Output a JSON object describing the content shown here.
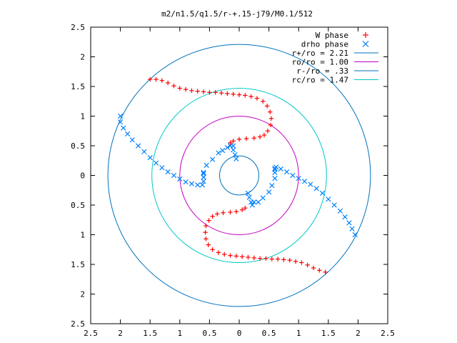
{
  "chart_data": {
    "type": "scatter",
    "title": "m2/n1.5/q1.5/r-+.15-j79/M0.1/512",
    "xlabel": "",
    "ylabel": "",
    "xlim": [
      -2.5,
      2.5
    ],
    "ylim": [
      -2.5,
      2.5
    ],
    "x_ticks": [
      -2.5,
      -2,
      -1.5,
      -1,
      -0.5,
      0,
      0.5,
      1,
      1.5,
      2,
      2.5
    ],
    "y_ticks": [
      -2.5,
      -2,
      -1.5,
      -1,
      -0.5,
      0,
      0.5,
      1,
      1.5,
      2,
      2.5
    ],
    "x_tick_labels": [
      "2.5",
      "2",
      "1.5",
      "1",
      "0.5",
      "0",
      "0.5",
      "1",
      "1.5",
      "2",
      "2.5"
    ],
    "y_tick_labels": [
      "2.5",
      "2",
      "1.5",
      "1",
      "0.5",
      "0",
      "0.5",
      "1",
      "1.5",
      "2",
      "2.5"
    ],
    "grid": false,
    "legend_position": "top-right",
    "series": [
      {
        "name": "W phase",
        "marker": "plus",
        "color": "#ff0000",
        "points": [
          [
            -1.5,
            1.62
          ],
          [
            -1.4,
            1.62
          ],
          [
            -1.3,
            1.6
          ],
          [
            -1.2,
            1.56
          ],
          [
            -1.1,
            1.51
          ],
          [
            -1.0,
            1.47
          ],
          [
            -0.9,
            1.45
          ],
          [
            -0.8,
            1.43
          ],
          [
            -0.7,
            1.42
          ],
          [
            -0.6,
            1.41
          ],
          [
            -0.5,
            1.4
          ],
          [
            -0.4,
            1.4
          ],
          [
            -0.3,
            1.39
          ],
          [
            -0.2,
            1.38
          ],
          [
            -0.1,
            1.37
          ],
          [
            0.0,
            1.36
          ],
          [
            0.1,
            1.35
          ],
          [
            0.2,
            1.33
          ],
          [
            0.3,
            1.3
          ],
          [
            0.4,
            1.25
          ],
          [
            0.47,
            1.17
          ],
          [
            0.52,
            1.07
          ],
          [
            0.54,
            0.96
          ],
          [
            0.53,
            0.85
          ],
          [
            0.48,
            0.75
          ],
          [
            0.42,
            0.68
          ],
          [
            0.35,
            0.65
          ],
          [
            0.25,
            0.63
          ],
          [
            0.12,
            0.62
          ],
          [
            0.0,
            0.61
          ],
          [
            -0.1,
            0.58
          ],
          [
            -0.15,
            0.55
          ],
          [
            1.45,
            -1.63
          ],
          [
            1.35,
            -1.6
          ],
          [
            1.25,
            -1.56
          ],
          [
            1.15,
            -1.51
          ],
          [
            1.05,
            -1.47
          ],
          [
            0.95,
            -1.45
          ],
          [
            0.85,
            -1.43
          ],
          [
            0.75,
            -1.42
          ],
          [
            0.65,
            -1.41
          ],
          [
            0.55,
            -1.41
          ],
          [
            0.45,
            -1.4
          ],
          [
            0.35,
            -1.4
          ],
          [
            0.25,
            -1.39
          ],
          [
            0.15,
            -1.38
          ],
          [
            0.05,
            -1.37
          ],
          [
            -0.05,
            -1.36
          ],
          [
            -0.15,
            -1.35
          ],
          [
            -0.25,
            -1.33
          ],
          [
            -0.35,
            -1.3
          ],
          [
            -0.45,
            -1.25
          ],
          [
            -0.52,
            -1.17
          ],
          [
            -0.56,
            -1.07
          ],
          [
            -0.57,
            -0.96
          ],
          [
            -0.56,
            -0.85
          ],
          [
            -0.51,
            -0.76
          ],
          [
            -0.45,
            -0.69
          ],
          [
            -0.37,
            -0.65
          ],
          [
            -0.27,
            -0.63
          ],
          [
            -0.15,
            -0.62
          ],
          [
            -0.05,
            -0.61
          ],
          [
            0.05,
            -0.58
          ],
          [
            0.1,
            -0.55
          ]
        ]
      },
      {
        "name": "drho phase",
        "marker": "cross",
        "color": "#0080ff",
        "points": [
          [
            -2.0,
            1.0
          ],
          [
            -2.0,
            0.9
          ],
          [
            -1.95,
            0.8
          ],
          [
            -1.88,
            0.7
          ],
          [
            -1.8,
            0.6
          ],
          [
            -1.7,
            0.5
          ],
          [
            -1.6,
            0.4
          ],
          [
            -1.5,
            0.3
          ],
          [
            -1.4,
            0.21
          ],
          [
            -1.3,
            0.13
          ],
          [
            -1.2,
            0.06
          ],
          [
            -1.1,
            0.0
          ],
          [
            -1.0,
            -0.06
          ],
          [
            -0.9,
            -0.11
          ],
          [
            -0.8,
            -0.14
          ],
          [
            -0.7,
            -0.16
          ],
          [
            -0.62,
            -0.16
          ],
          [
            -0.6,
            -0.1
          ],
          [
            -0.6,
            -0.03
          ],
          [
            -0.6,
            0.03
          ],
          [
            1.95,
            -1.0
          ],
          [
            1.9,
            -0.9
          ],
          [
            1.85,
            -0.8
          ],
          [
            1.78,
            -0.7
          ],
          [
            1.7,
            -0.6
          ],
          [
            1.6,
            -0.5
          ],
          [
            1.5,
            -0.4
          ],
          [
            1.4,
            -0.3
          ],
          [
            1.3,
            -0.22
          ],
          [
            1.2,
            -0.15
          ],
          [
            1.1,
            -0.1
          ],
          [
            1.0,
            -0.05
          ],
          [
            0.9,
            0.0
          ],
          [
            0.8,
            0.06
          ],
          [
            0.7,
            0.11
          ],
          [
            0.62,
            0.14
          ],
          [
            0.6,
            0.1
          ],
          [
            -0.1,
            0.5
          ],
          [
            -0.1,
            0.43
          ],
          [
            -0.07,
            0.35
          ],
          [
            -0.05,
            0.28
          ],
          [
            -0.15,
            0.5
          ],
          [
            -0.2,
            0.47
          ],
          [
            -0.28,
            0.42
          ],
          [
            -0.35,
            0.38
          ],
          [
            -0.45,
            0.27
          ],
          [
            -0.55,
            0.17
          ],
          [
            -0.6,
            0.05
          ],
          [
            -0.6,
            -0.03
          ],
          [
            0.15,
            -0.3
          ],
          [
            0.17,
            -0.37
          ],
          [
            0.2,
            -0.45
          ],
          [
            0.22,
            -0.5
          ],
          [
            0.25,
            -0.45
          ],
          [
            0.32,
            -0.45
          ],
          [
            0.4,
            -0.38
          ],
          [
            0.5,
            -0.28
          ],
          [
            0.55,
            -0.17
          ],
          [
            0.6,
            -0.05
          ],
          [
            0.6,
            0.05
          ],
          [
            0.6,
            0.12
          ]
        ]
      }
    ],
    "circles": [
      {
        "name": "r+/ro = 2.21",
        "r": 2.21,
        "color": "#0072bd"
      },
      {
        "name": "ro/ro = 1.00",
        "r": 1.0,
        "color": "#c000c0"
      },
      {
        "name": "r-/ro = .33",
        "r": 0.33,
        "color": "#0072bd"
      },
      {
        "name": "rc/ro = 1.47",
        "r": 1.47,
        "color": "#00c8c8"
      }
    ]
  }
}
